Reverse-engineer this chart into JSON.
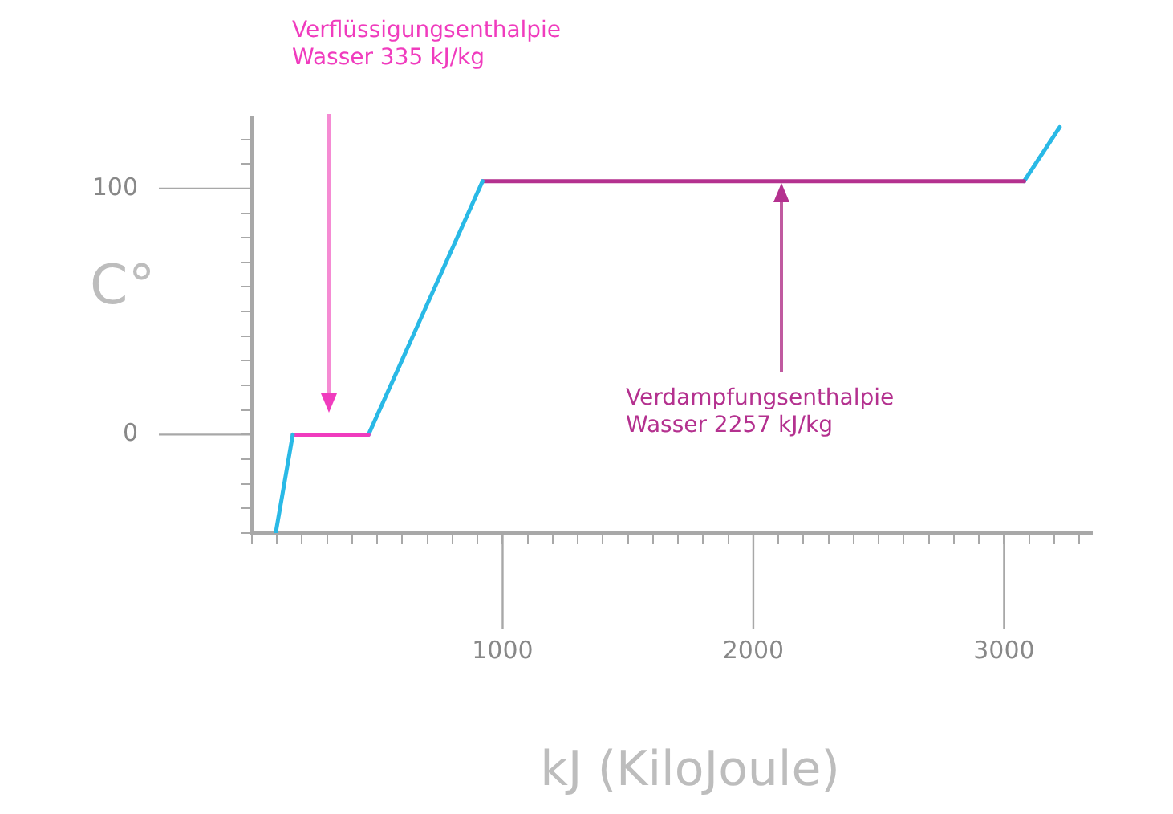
{
  "chart_data": {
    "type": "line",
    "xlabel": "kJ (KiloJoule)",
    "ylabel": "C°",
    "xlim": [
      0,
      3350
    ],
    "ylim": [
      -40,
      129
    ],
    "xticks": [
      {
        "value": 0,
        "label": null
      },
      {
        "value": 100,
        "label": null
      },
      {
        "value": 200,
        "label": null
      },
      {
        "value": 300,
        "label": null
      },
      {
        "value": 400,
        "label": null
      },
      {
        "value": 500,
        "label": null
      },
      {
        "value": 600,
        "label": null
      },
      {
        "value": 700,
        "label": null
      },
      {
        "value": 800,
        "label": null
      },
      {
        "value": 900,
        "label": null
      },
      1000,
      {
        "value": 1100,
        "label": null
      },
      {
        "value": 1200,
        "label": null
      },
      {
        "value": 1300,
        "label": null
      },
      {
        "value": 1400,
        "label": null
      },
      {
        "value": 1500,
        "label": null
      },
      {
        "value": 1600,
        "label": null
      },
      {
        "value": 1700,
        "label": null
      },
      {
        "value": 1800,
        "label": null
      },
      {
        "value": 1900,
        "label": null
      },
      2000,
      {
        "value": 2100,
        "label": null
      },
      {
        "value": 2200,
        "label": null
      },
      {
        "value": 2300,
        "label": null
      },
      {
        "value": 2400,
        "label": null
      },
      {
        "value": 2500,
        "label": null
      },
      {
        "value": 2600,
        "label": null
      },
      {
        "value": 2700,
        "label": null
      },
      {
        "value": 2800,
        "label": null
      },
      {
        "value": 2900,
        "label": null
      },
      3000,
      {
        "value": 3100,
        "label": null
      },
      {
        "value": 3200,
        "label": null
      },
      {
        "value": 3300,
        "label": null
      }
    ],
    "yticks": [
      {
        "value": -40,
        "label": null
      },
      {
        "value": -30,
        "label": null
      },
      {
        "value": -20,
        "label": null
      },
      {
        "value": -10,
        "label": null
      },
      0,
      {
        "value": 10,
        "label": null
      },
      {
        "value": 20,
        "label": null
      },
      {
        "value": 30,
        "label": null
      },
      {
        "value": 40,
        "label": null
      },
      {
        "value": 50,
        "label": null
      },
      {
        "value": 60,
        "label": null
      },
      {
        "value": 70,
        "label": null
      },
      {
        "value": 80,
        "label": null
      },
      {
        "value": 90,
        "label": null
      },
      100,
      {
        "value": 110,
        "label": null
      },
      {
        "value": 120,
        "label": null
      }
    ],
    "grid": false,
    "legend": false,
    "marker": "none",
    "line_style": "solid",
    "series": [
      {
        "color": "#29b9e6",
        "x": [
          95,
          163
        ],
        "values": [
          -40,
          0
        ]
      },
      {
        "color": "#f03cbe",
        "x": [
          163,
          465
        ],
        "values": [
          0,
          0
        ]
      },
      {
        "color": "#29b9e6",
        "x": [
          465,
          920
        ],
        "values": [
          0,
          103
        ]
      },
      {
        "color": "#b4318f",
        "x": [
          920,
          3080
        ],
        "values": [
          103,
          103
        ]
      },
      {
        "color": "#29b9e6",
        "x": [
          3080,
          3222
        ],
        "values": [
          103,
          125
        ]
      }
    ],
    "annotations": [
      "Verflüssigungsenthalpie\nWasser 335 kJ/kg",
      "Verdampfungsenthalpie\nWasser 2257 kJ/kg"
    ]
  }
}
